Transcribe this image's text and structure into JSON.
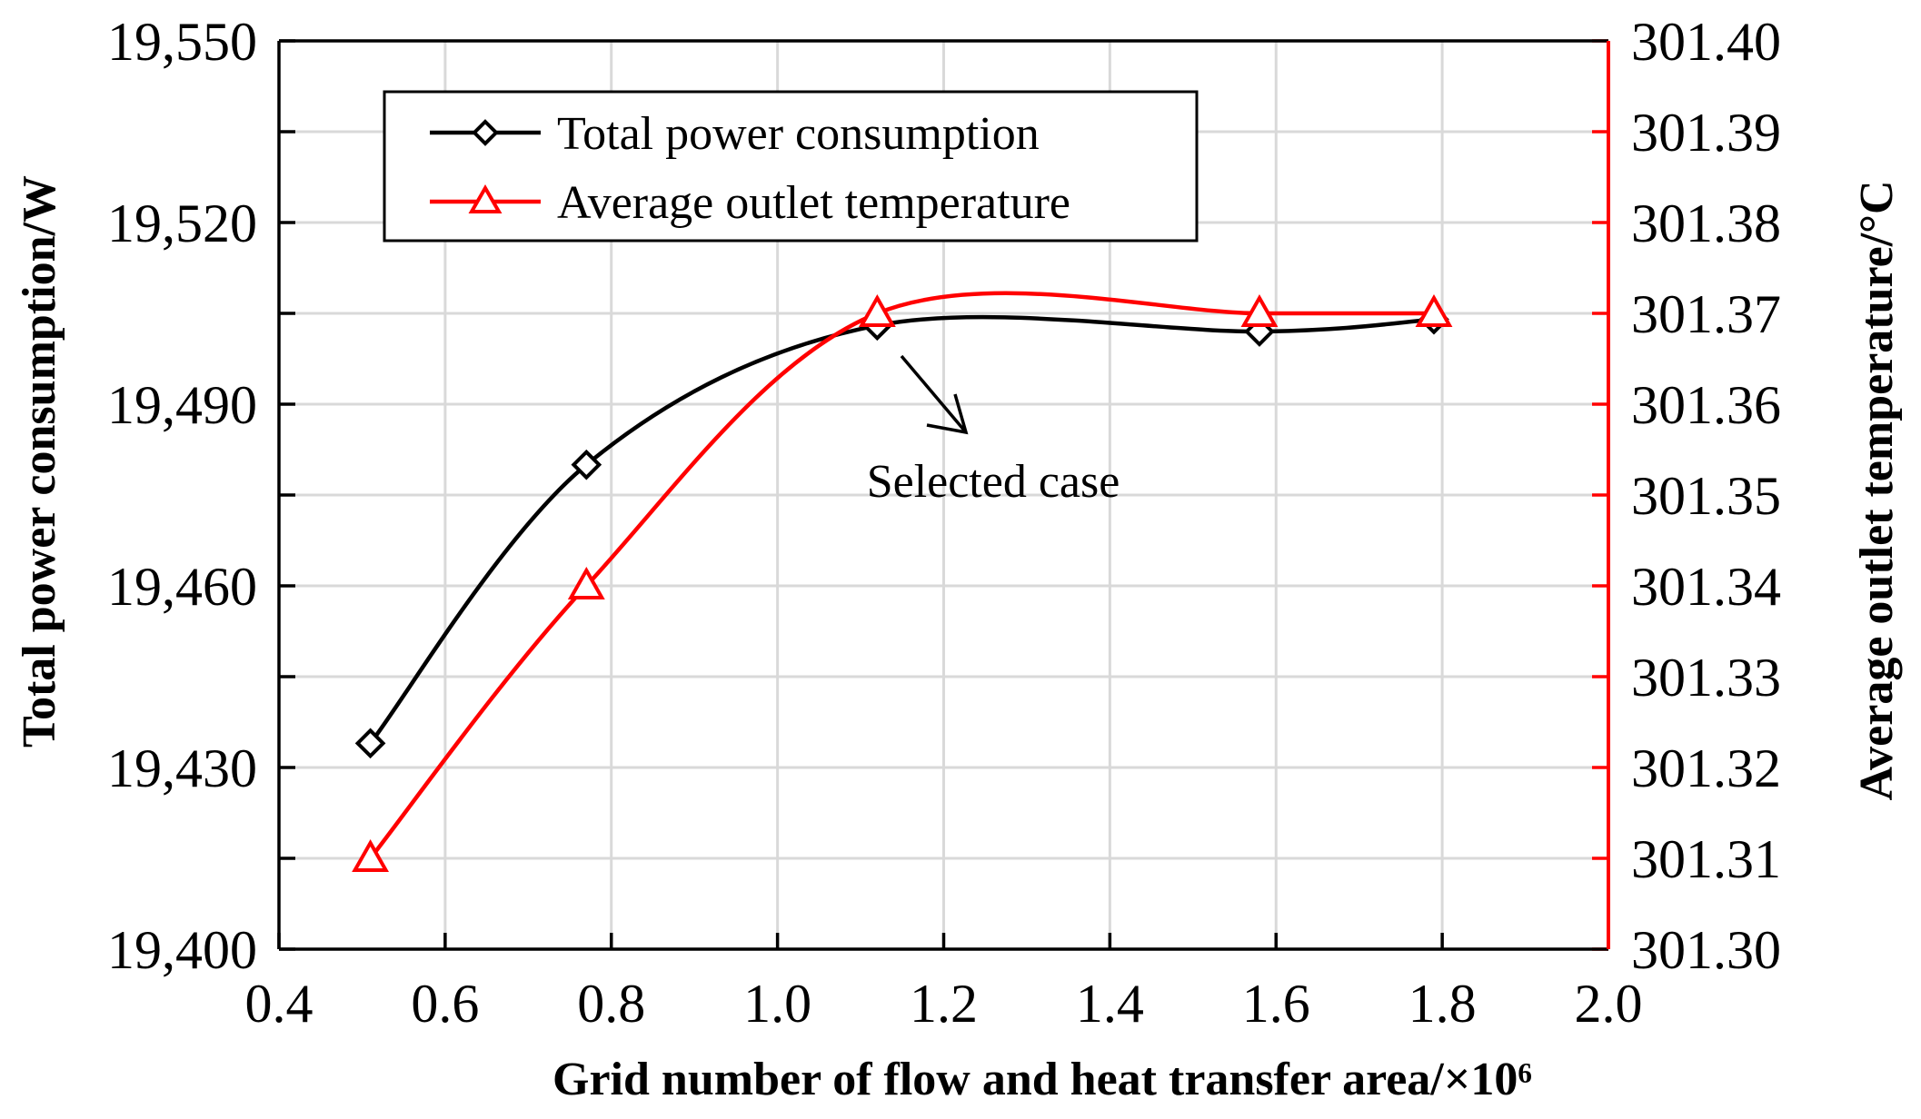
{
  "chart_data": {
    "type": "line",
    "title": "",
    "xlabel": "Grid number of flow and heat transfer area/×10⁶",
    "ylabel_left": "Total power consumption/W",
    "ylabel_right": "Average outlet temperature/°C",
    "xlim": [
      0.4,
      2.0
    ],
    "ylim_left": [
      19400,
      19550
    ],
    "ylim_right": [
      301.3,
      301.4
    ],
    "x_ticks": [
      0.4,
      0.6,
      0.8,
      1.0,
      1.2,
      1.4,
      1.6,
      1.8,
      2.0
    ],
    "x_tick_labels": [
      "0.4",
      "0.6",
      "0.8",
      "1.0",
      "1.2",
      "1.4",
      "1.6",
      "1.8",
      "2.0"
    ],
    "y_left_ticks": [
      19400,
      19430,
      19460,
      19490,
      19520,
      19550
    ],
    "y_left_tick_labels": [
      "19,400",
      "19,430",
      "19,460",
      "19,490",
      "19,520",
      "19,550"
    ],
    "y_right_ticks": [
      301.3,
      301.31,
      301.32,
      301.33,
      301.34,
      301.35,
      301.36,
      301.37,
      301.38,
      301.39,
      301.4
    ],
    "y_right_tick_labels": [
      "301.30",
      "301.31",
      "301.32",
      "301.33",
      "301.34",
      "301.35",
      "301.36",
      "301.37",
      "301.38",
      "301.39",
      "301.40"
    ],
    "grid": true,
    "legend_position": "top-left",
    "series": [
      {
        "name": "Total power consumption",
        "axis": "left",
        "color": "#000000",
        "marker": "diamond",
        "x": [
          0.51,
          0.77,
          1.12,
          1.58,
          1.79
        ],
        "values": [
          19434,
          19480,
          19503,
          19502,
          19504
        ]
      },
      {
        "name": "Average outlet temperature",
        "axis": "right",
        "color": "#ff0000",
        "marker": "triangle",
        "x": [
          0.51,
          0.77,
          1.12,
          1.58,
          1.79
        ],
        "values": [
          301.31,
          301.34,
          301.37,
          301.37,
          301.37
        ]
      }
    ],
    "annotations": [
      {
        "text": "Selected case",
        "points_to_x": 1.12,
        "points_to_y": 19503
      }
    ]
  }
}
